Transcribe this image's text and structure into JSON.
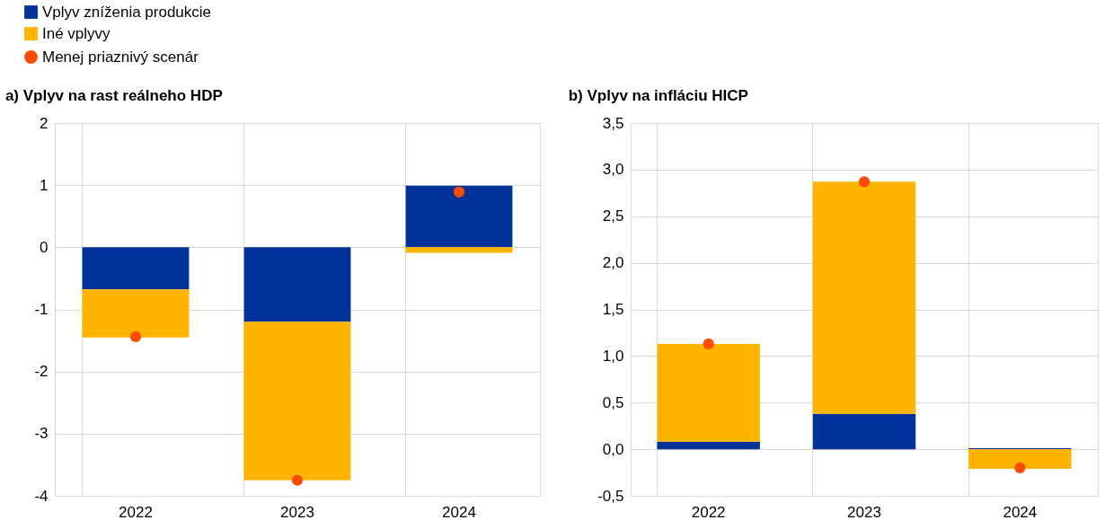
{
  "chart_data": [
    {
      "type": "bar",
      "title": "a) Vplyv na rast reálneho HDP",
      "categories": [
        "2022",
        "2023",
        "2024"
      ],
      "stacked": true,
      "ylim": [
        -4,
        2
      ],
      "yticks": [
        -4,
        -3,
        -2,
        -1,
        0,
        1,
        2
      ],
      "grid": true,
      "legend": "top left",
      "series": [
        {
          "name": "Vplyv zníženia produkcie",
          "color": "#003299",
          "values": [
            -0.68,
            -1.2,
            0.99
          ]
        },
        {
          "name": "Iné vplyvy",
          "color": "#ffb400",
          "values": [
            -0.77,
            -2.55,
            -0.09
          ]
        },
        {
          "name": "Menej priaznivý scenár",
          "color": "#ff4b00",
          "type": "scatter",
          "marker": "circle",
          "values": [
            -1.44,
            -3.75,
            0.89
          ]
        }
      ]
    },
    {
      "type": "bar",
      "title": "b) Vplyv na infláciu HICP",
      "categories": [
        "2022",
        "2023",
        "2024"
      ],
      "stacked": true,
      "ylim": [
        -0.5,
        3.5
      ],
      "grid": true,
      "legend": "top left",
      "yticks": [
        {
          "value": -0.5,
          "label": "-0,5"
        },
        {
          "value": 0,
          "label": "0,0"
        },
        {
          "value": 0.5,
          "label": "0,5"
        },
        {
          "value": 1,
          "label": "1,0"
        },
        {
          "value": 1.5,
          "label": "1,5"
        },
        {
          "value": 2,
          "label": "2,0"
        },
        {
          "value": 2.5,
          "label": "2,5"
        },
        {
          "value": 3,
          "label": "3,0"
        },
        {
          "value": 3.5,
          "label": "3,5"
        }
      ],
      "series": [
        {
          "name": "Vplyv zníženia produkcie",
          "color": "#003299",
          "values": [
            0.08,
            0.38,
            0.01
          ]
        },
        {
          "name": "Iné vplyvy",
          "color": "#ffb400",
          "values": [
            1.05,
            2.49,
            -0.21
          ]
        },
        {
          "name": "Menej priaznivý scenár",
          "color": "#ff4b00",
          "type": "scatter",
          "marker": "circle",
          "values": [
            1.13,
            2.87,
            -0.2
          ]
        }
      ]
    }
  ]
}
